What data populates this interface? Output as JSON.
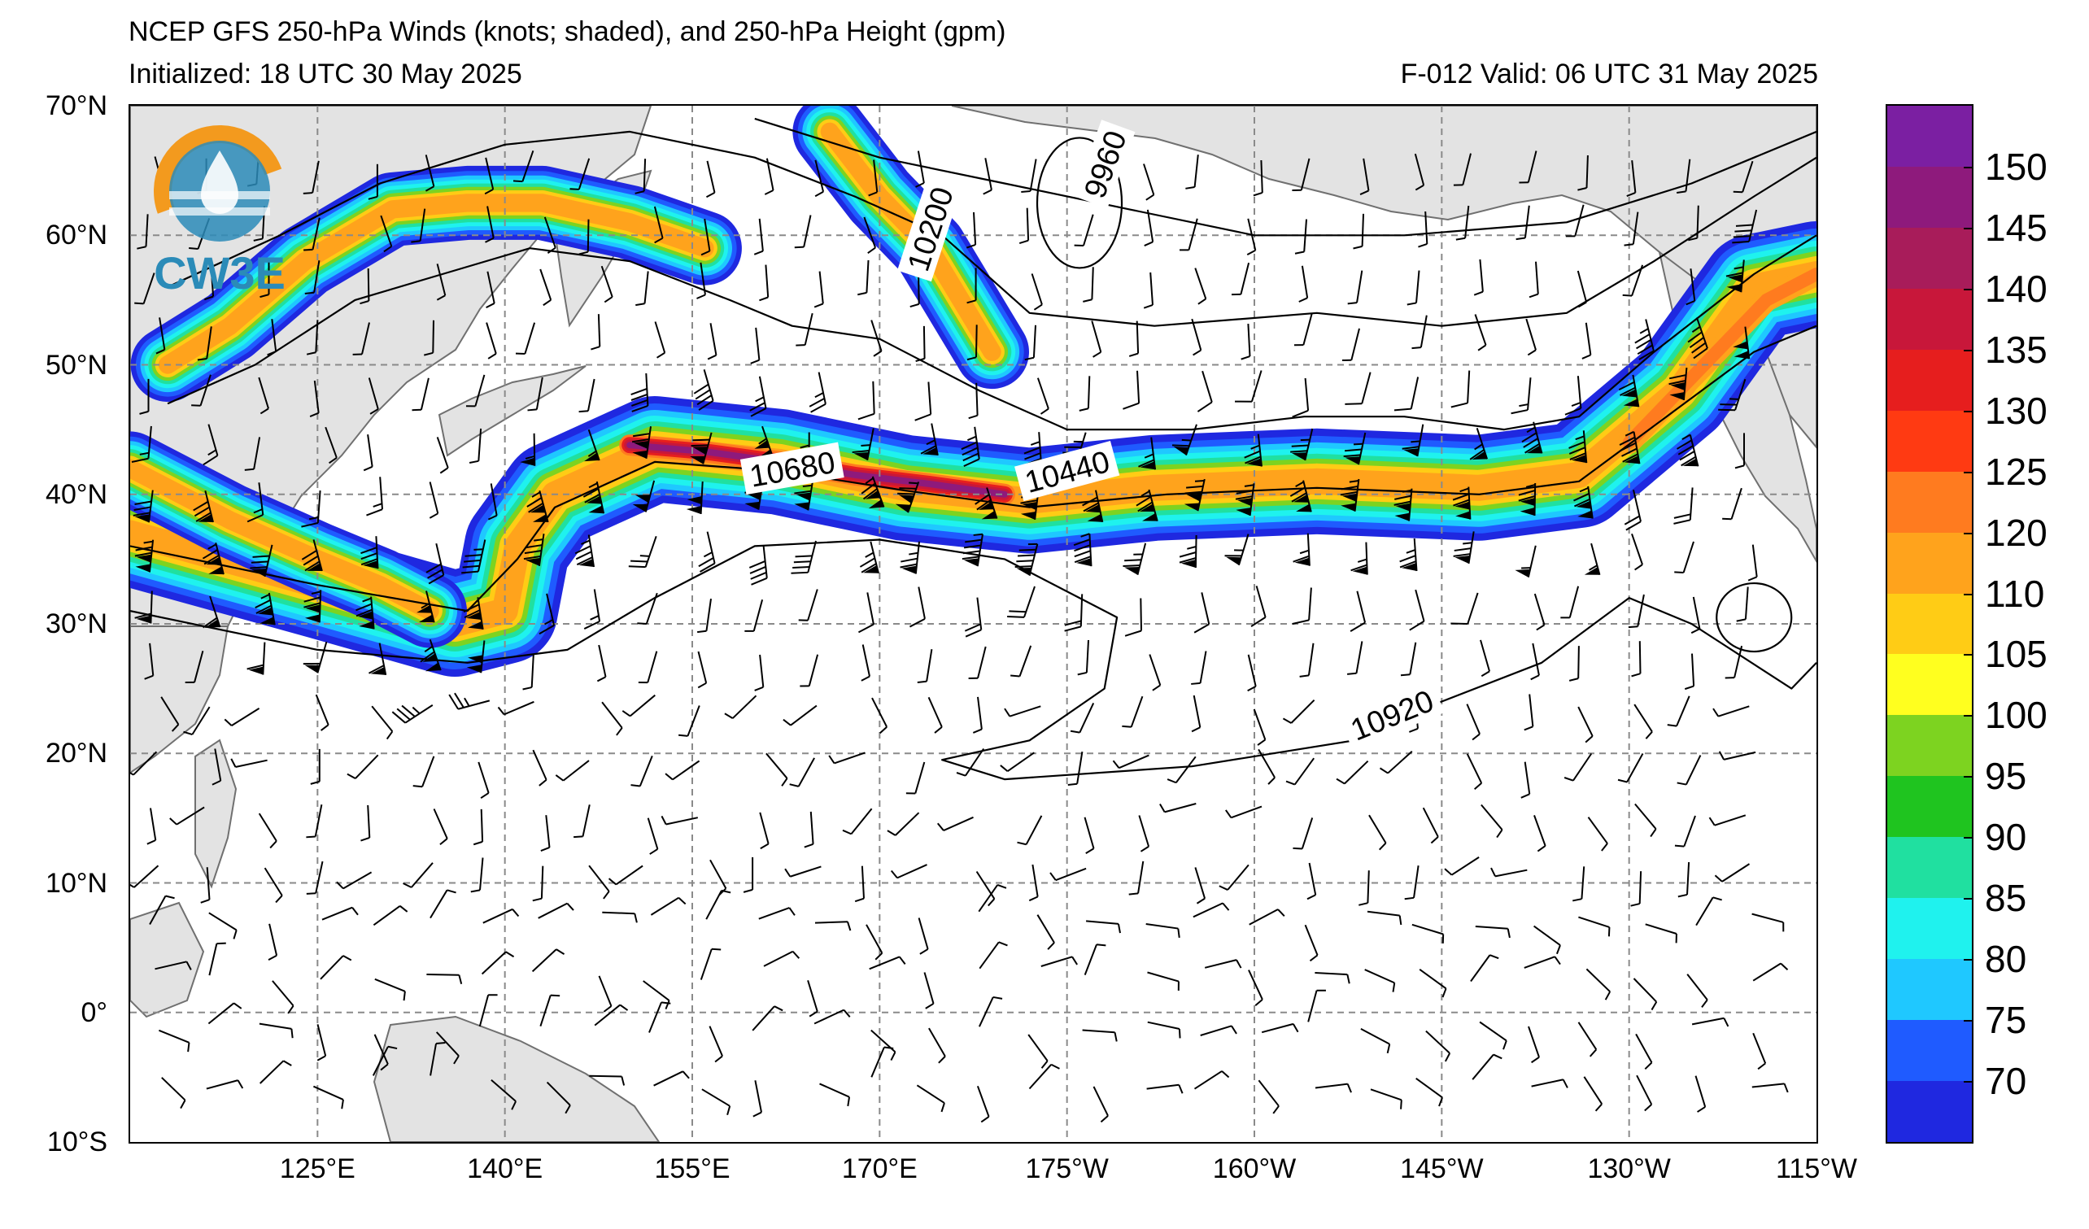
{
  "header": {
    "title": "NCEP GFS 250-hPa Winds (knots; shaded), and 250-hPa Height (gpm)",
    "initialized": "Initialized: 18 UTC 30 May 2025",
    "valid": "F-012  Valid: 06 UTC 31 May 2025"
  },
  "logo": {
    "text": "CW3E",
    "icon": "cw3e-water-drop-logo"
  },
  "axes": {
    "lat_labels": [
      "70°N",
      "60°N",
      "50°N",
      "40°N",
      "30°N",
      "20°N",
      "10°N",
      "0°",
      "10°S"
    ],
    "lon_labels": [
      "125°E",
      "140°E",
      "155°E",
      "170°E",
      "175°W",
      "160°W",
      "145°W",
      "130°W",
      "115°W"
    ],
    "lat_values": [
      70,
      60,
      50,
      40,
      30,
      20,
      10,
      0,
      -10
    ],
    "lon_values_east": [
      125,
      140,
      155,
      170,
      185,
      200,
      215,
      230,
      245
    ],
    "lon_range_east": [
      110,
      245
    ],
    "lat_range": [
      -10,
      70
    ],
    "grid": "dashed"
  },
  "contour_labels": [
    {
      "text": "10680",
      "lon": 163,
      "lat": 42,
      "angle": -10
    },
    {
      "text": "10440",
      "lon": 185,
      "lat": 41.8,
      "angle": -15
    },
    {
      "text": "10200",
      "lon": 174,
      "lat": 60.5,
      "angle": -72
    },
    {
      "text": "9960",
      "lon": 188,
      "lat": 65.5,
      "angle": -70
    },
    {
      "text": "10920",
      "lon": 211,
      "lat": 23,
      "angle": -22
    }
  ],
  "colorbar": {
    "labels": [
      "150",
      "145",
      "140",
      "135",
      "130",
      "125",
      "120",
      "110",
      "105",
      "100",
      "95",
      "90",
      "85",
      "80",
      "75",
      "70"
    ],
    "colors": [
      "#7b1fa2",
      "#8e1a7c",
      "#a81c5a",
      "#c8173a",
      "#e61e1e",
      "#ff3a12",
      "#ff7b1f",
      "#ffa31c",
      "#ffcc15",
      "#ffff1f",
      "#7dd320",
      "#1fc41f",
      "#20e0a0",
      "#1ff2ee",
      "#1fc8ff",
      "#1f5bff",
      "#1f28e0"
    ],
    "units": "knots"
  },
  "colors": {
    "land": "#e3e3e3",
    "coast": "#707070",
    "grid": "#8a8a8a"
  }
}
